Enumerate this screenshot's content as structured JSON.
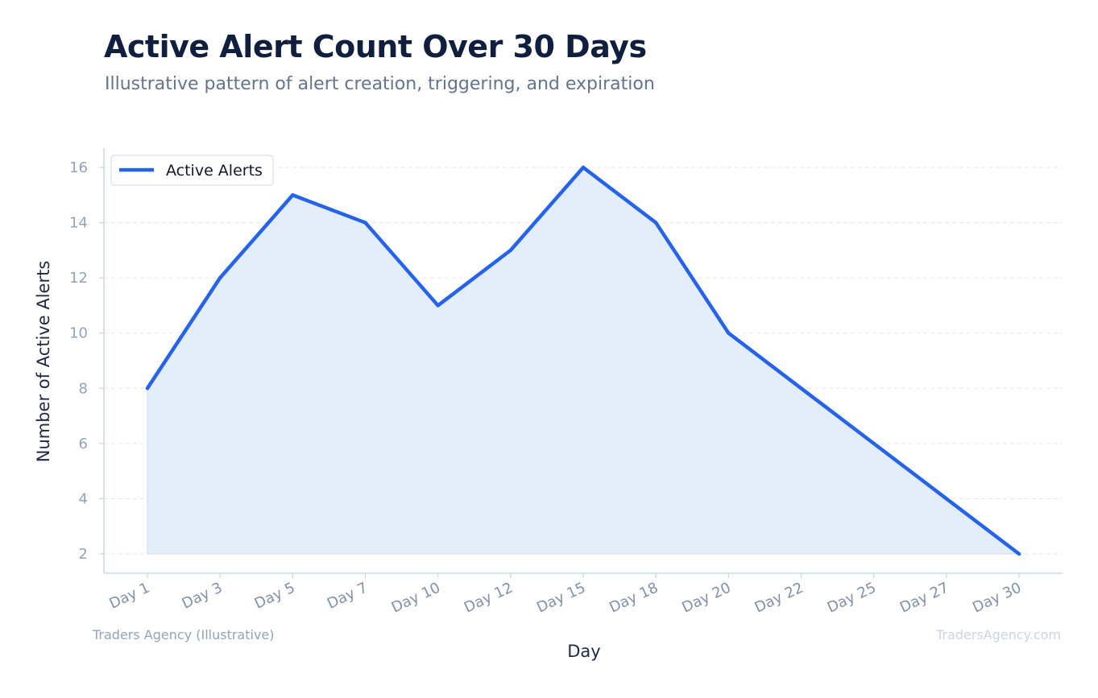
{
  "header": {
    "title": "Active Alert Count Over 30 Days",
    "subtitle": "Illustrative pattern of alert creation, triggering, and expiration"
  },
  "footer": {
    "source": "Traders Agency (Illustrative)",
    "watermark": "TradersAgency.com"
  },
  "colors": {
    "line": "#2563eb",
    "fill": "#dbe7f8",
    "grid": "#e5e7eb",
    "axis": "#cbd5e1",
    "tick_text": "#94a3b8",
    "label_text": "#1e2a44"
  },
  "chart_data": {
    "type": "area",
    "title": "Active Alert Count Over 30 Days",
    "subtitle": "Illustrative pattern of alert creation, triggering, and expiration",
    "xlabel": "Day",
    "ylabel": "Number of Active Alerts",
    "categories": [
      "Day 1",
      "Day 3",
      "Day 5",
      "Day 7",
      "Day 10",
      "Day 12",
      "Day 15",
      "Day 18",
      "Day 20",
      "Day 22",
      "Day 25",
      "Day 27",
      "Day 30"
    ],
    "series": [
      {
        "name": "Active Alerts",
        "values": [
          8,
          12,
          15,
          14,
          11,
          13,
          16,
          14,
          10,
          8,
          6,
          4,
          2
        ]
      }
    ],
    "yticks": [
      2,
      4,
      6,
      8,
      10,
      12,
      14,
      16
    ],
    "ylim": [
      1.3,
      16.7
    ],
    "grid": true,
    "legend": "top-left"
  }
}
